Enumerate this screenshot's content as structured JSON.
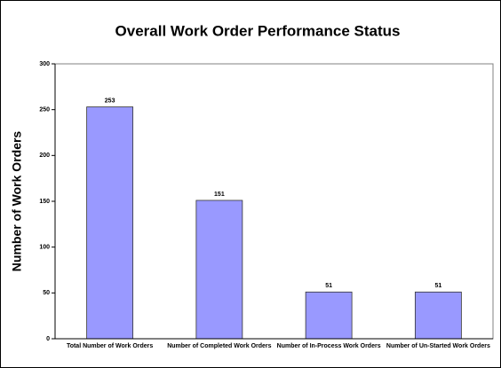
{
  "chart_data": {
    "type": "bar",
    "title": "Overall Work Order Performance Status",
    "y_label": "Number of Work Orders",
    "categories": [
      "Total Number of Work Orders",
      "Number of Completed Work Orders",
      "Number of In-Process Work Orders",
      "Number of Un-Started Work Orders"
    ],
    "values": [
      253,
      151,
      51,
      51
    ],
    "color": "#9999ff",
    "ylim": [
      0,
      300
    ],
    "yticks": [
      0,
      50,
      100,
      150,
      200,
      250,
      300
    ],
    "grid": false
  }
}
